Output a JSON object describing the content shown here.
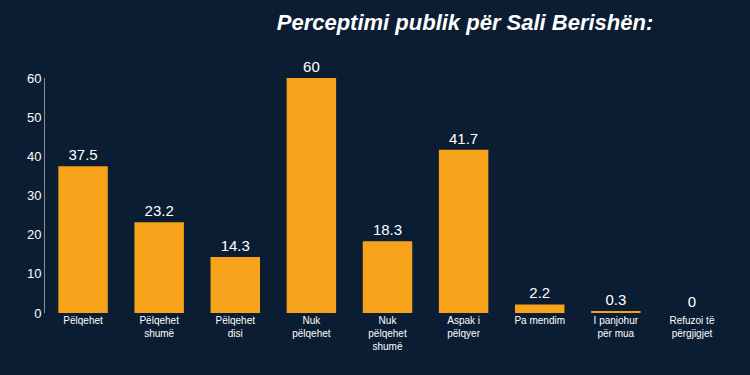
{
  "chart_data": {
    "type": "bar",
    "title": "Perceptimi publik për Sali Berishën:",
    "categories": [
      "Pëlqehet",
      "Pëlqehet shumë",
      "Pëlqehet disi",
      "Nuk pëlqehet",
      "Nuk pëlqehet shumë",
      "Aspak i pëlqyer",
      "Pa mendim",
      "I panjohur për mua",
      "Refuzoi të përgjigjet"
    ],
    "values": [
      37.5,
      23.2,
      14.3,
      60,
      18.3,
      41.7,
      2.2,
      0.3,
      0
    ],
    "color": "#f7a21b",
    "ylim": [
      0,
      60
    ],
    "yticks": [
      0,
      10,
      20,
      30,
      40,
      50,
      60
    ],
    "grid": false,
    "data_labels": true
  }
}
